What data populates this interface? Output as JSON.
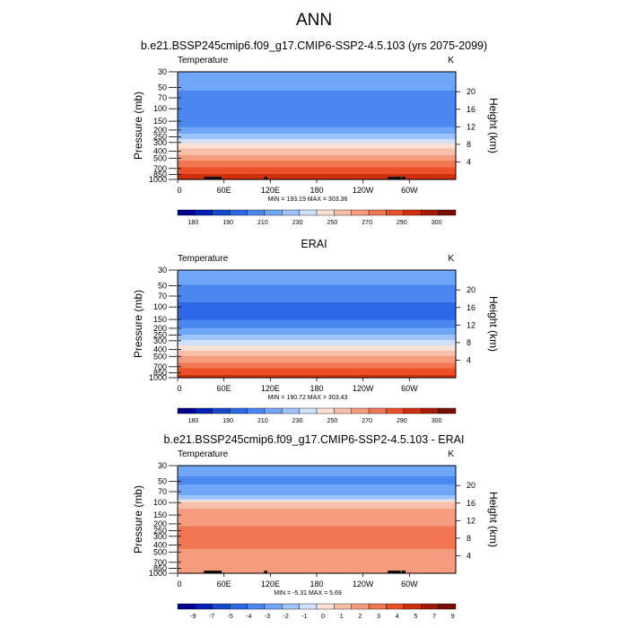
{
  "page": {
    "title": "ANN"
  },
  "chart_data": [
    {
      "type": "heatmap",
      "title": "b.e21.BSSP245cmip6.f09_g17.CMIP6-SSP2-4.5.103 (yrs 2075-2099)",
      "variable": "Temperature",
      "units": "K",
      "ylabel": "Pressure (mb)",
      "y2label": "Height (km)",
      "x_ticks": [
        "0",
        "60E",
        "120E",
        "180",
        "120W",
        "60W"
      ],
      "y_ticks": [
        "30",
        "50",
        "70",
        "100",
        "150",
        "200",
        "250",
        "300",
        "400",
        "500",
        "700",
        "850",
        "1000"
      ],
      "y2_ticks": [
        "20",
        "16",
        "12",
        "8",
        "4"
      ],
      "stats": "MIN = 193.19  MAX = 303.36",
      "min": 193.19,
      "max": 303.36,
      "colorbar": {
        "labels": [
          "180",
          "190",
          "210",
          "230",
          "250",
          "270",
          "290",
          "300"
        ],
        "colors": [
          "#00008f",
          "#0020b4",
          "#1448cf",
          "#2d68e6",
          "#4a87f0",
          "#6fa6f7",
          "#9dc3fa",
          "#cfe0fb",
          "#fbe1d5",
          "#f8bfa8",
          "#f59b7e",
          "#f17752",
          "#ea5127",
          "#cf2f0c",
          "#a61b04",
          "#780d01"
        ]
      },
      "profile": [
        {
          "p": 30,
          "v": 222
        },
        {
          "p": 50,
          "v": 216
        },
        {
          "p": 70,
          "v": 211
        },
        {
          "p": 100,
          "v": 206
        },
        {
          "p": 150,
          "v": 208
        },
        {
          "p": 200,
          "v": 218
        },
        {
          "p": 250,
          "v": 228
        },
        {
          "p": 300,
          "v": 238
        },
        {
          "p": 400,
          "v": 252
        },
        {
          "p": 500,
          "v": 262
        },
        {
          "p": 700,
          "v": 276
        },
        {
          "p": 850,
          "v": 284
        },
        {
          "p": 1000,
          "v": 292
        }
      ],
      "masked": [
        [
          34,
          40
        ],
        [
          39,
          57
        ],
        [
          112,
          116
        ],
        [
          272,
          289
        ],
        [
          290,
          295
        ]
      ]
    },
    {
      "type": "heatmap",
      "title": "ERAI",
      "variable": "Temperature",
      "units": "K",
      "ylabel": "Pressure (mb)",
      "y2label": "Height (km)",
      "x_ticks": [
        "0",
        "60E",
        "120E",
        "180",
        "120W",
        "60W"
      ],
      "y_ticks": [
        "30",
        "50",
        "70",
        "100",
        "150",
        "200",
        "250",
        "300",
        "400",
        "500",
        "700",
        "850",
        "1000"
      ],
      "y2_ticks": [
        "20",
        "16",
        "12",
        "8",
        "4"
      ],
      "stats": "MIN = 190.72  MAX = 303.43",
      "min": 190.72,
      "max": 303.43,
      "colorbar": {
        "labels": [
          "180",
          "190",
          "210",
          "230",
          "250",
          "270",
          "290",
          "300"
        ],
        "colors": [
          "#00008f",
          "#0020b4",
          "#1448cf",
          "#2d68e6",
          "#4a87f0",
          "#6fa6f7",
          "#9dc3fa",
          "#cfe0fb",
          "#fbe1d5",
          "#f8bfa8",
          "#f59b7e",
          "#f17752",
          "#ea5127",
          "#cf2f0c",
          "#a61b04",
          "#780d01"
        ]
      },
      "profile": [
        {
          "p": 30,
          "v": 220
        },
        {
          "p": 50,
          "v": 214
        },
        {
          "p": 70,
          "v": 209
        },
        {
          "p": 100,
          "v": 203
        },
        {
          "p": 150,
          "v": 205
        },
        {
          "p": 200,
          "v": 214
        },
        {
          "p": 250,
          "v": 224
        },
        {
          "p": 300,
          "v": 233
        },
        {
          "p": 400,
          "v": 247
        },
        {
          "p": 500,
          "v": 257
        },
        {
          "p": 700,
          "v": 272
        },
        {
          "p": 850,
          "v": 280
        },
        {
          "p": 1000,
          "v": 288
        }
      ],
      "masked": []
    },
    {
      "type": "heatmap",
      "title": "b.e21.BSSP245cmip6.f09_g17.CMIP6-SSP2-4.5.103 - ERAI",
      "variable": "Temperature",
      "units": "K",
      "ylabel": "Pressure (mb)",
      "y2label": "Height (km)",
      "x_ticks": [
        "0",
        "60E",
        "120E",
        "180",
        "120W",
        "60W"
      ],
      "y_ticks": [
        "30",
        "50",
        "70",
        "100",
        "150",
        "200",
        "250",
        "300",
        "400",
        "500",
        "700",
        "850",
        "1000"
      ],
      "y2_ticks": [
        "20",
        "16",
        "12",
        "8",
        "4"
      ],
      "stats": "MIN = -5.31  MAX =  5.69",
      "min": -5.31,
      "max": 5.69,
      "colorbar": {
        "labels": [
          "-9",
          "-7",
          "-5",
          "-4",
          "-3",
          "-2",
          "-1",
          "0",
          "1",
          "2",
          "3",
          "4",
          "5",
          "7",
          "9"
        ],
        "colors": [
          "#00008f",
          "#0020b4",
          "#1448cf",
          "#2d68e6",
          "#4a87f0",
          "#6fa6f7",
          "#9dc3fa",
          "#cfe0fb",
          "#fbe1d5",
          "#f8bfa8",
          "#f59b7e",
          "#f17752",
          "#ea5127",
          "#cf2f0c",
          "#a61b04",
          "#780d01"
        ]
      },
      "profile": [
        {
          "p": 30,
          "v": -3.5
        },
        {
          "p": 50,
          "v": -4.0
        },
        {
          "p": 70,
          "v": -3.6
        },
        {
          "p": 90,
          "v": -1.5
        },
        {
          "p": 100,
          "v": 1.5
        },
        {
          "p": 150,
          "v": 3.5
        },
        {
          "p": 200,
          "v": 3.7
        },
        {
          "p": 250,
          "v": 4.2
        },
        {
          "p": 300,
          "v": 4.4
        },
        {
          "p": 400,
          "v": 4.0
        },
        {
          "p": 500,
          "v": 3.7
        },
        {
          "p": 700,
          "v": 3.6
        },
        {
          "p": 850,
          "v": 2.8
        },
        {
          "p": 1000,
          "v": 2.6
        }
      ],
      "masked": [
        [
          34,
          40
        ],
        [
          39,
          57
        ],
        [
          112,
          116
        ],
        [
          272,
          289
        ],
        [
          290,
          295
        ]
      ]
    }
  ]
}
